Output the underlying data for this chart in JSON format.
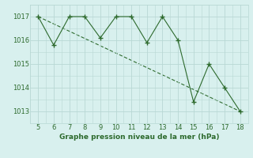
{
  "x": [
    5,
    6,
    7,
    8,
    9,
    10,
    11,
    12,
    13,
    14,
    15,
    16,
    17,
    18
  ],
  "y": [
    1017.0,
    1015.8,
    1017.0,
    1017.0,
    1016.1,
    1017.0,
    1017.0,
    1015.9,
    1017.0,
    1016.0,
    1013.4,
    1015.0,
    1014.0,
    1013.0
  ],
  "trend_x": [
    5,
    18
  ],
  "trend_y": [
    1017.0,
    1013.0
  ],
  "line_color": "#2d6a2d",
  "bg_color": "#d8f0ee",
  "grid_color": "#b8d8d4",
  "xlabel": "Graphe pression niveau de la mer (hPa)",
  "ylim": [
    1012.5,
    1017.5
  ],
  "xlim": [
    4.5,
    18.5
  ],
  "yticks": [
    1013,
    1014,
    1015,
    1016,
    1017
  ],
  "xticks": [
    5,
    6,
    7,
    8,
    9,
    10,
    11,
    12,
    13,
    14,
    15,
    16,
    17,
    18
  ]
}
